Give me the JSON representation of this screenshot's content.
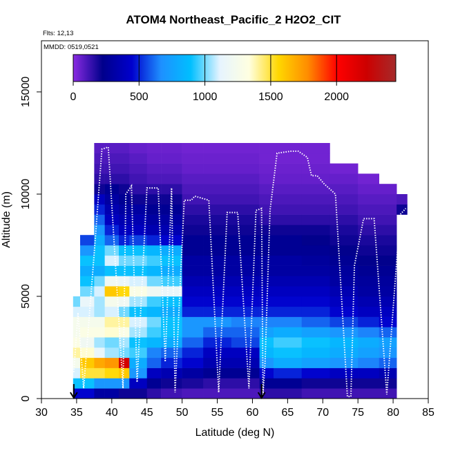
{
  "chart_data": {
    "type": "heatmap",
    "title": "ATOM4 Northeast_Pacific_2 H2O2_CIT",
    "flights_label": "Flts: 12,13",
    "dates_label": "MMDD: 0519,0521",
    "xlabel": "Latitude (deg N)",
    "ylabel": "Altitude (m)",
    "xlim": [
      30,
      85
    ],
    "ylim": [
      0,
      17500
    ],
    "x_ticks": [
      30,
      35,
      40,
      45,
      50,
      55,
      60,
      65,
      70,
      75,
      80,
      85
    ],
    "y_ticks": [
      0,
      5000,
      10000,
      15000
    ],
    "colorbar": {
      "min": 0,
      "max": 2450,
      "ticks": [
        0,
        500,
        1000,
        1500,
        2000
      ],
      "stops": [
        "#8a2be2",
        "#00008b",
        "#0000cd",
        "#1e90ff",
        "#00bfff",
        "#e6f4ff",
        "#ffffe0",
        "#ffd700",
        "#ff8c00",
        "#ff0000",
        "#cd0000",
        "#a52a2a"
      ]
    },
    "altitude_bins_m": [
      0,
      500,
      1000,
      1500,
      2000,
      2500,
      3000,
      3500,
      4000,
      4500,
      5000,
      5500,
      6000,
      6500,
      7000,
      7500,
      8000,
      8500,
      9000,
      9500,
      10000,
      10500,
      11000,
      11500,
      12000
    ],
    "columns": [
      {
        "lat": [
          34.5,
          35.5
        ],
        "values": [
          450,
          900,
          1100,
          1250,
          1400,
          1300,
          1250,
          1250,
          1100,
          1000
        ]
      },
      {
        "lat": [
          35.5,
          37.5
        ],
        "values": [
          450,
          900,
          1500,
          1600,
          1350,
          1200,
          1300,
          1250,
          1100,
          1150,
          1000,
          900,
          800,
          900,
          700,
          550
        ]
      },
      {
        "lat": [
          37.5,
          39
        ],
        "values": [
          300,
          700,
          1500,
          1700,
          1150,
          1050,
          1300,
          1250,
          1050,
          1050,
          1100,
          1000,
          800,
          900,
          900,
          800,
          700,
          600,
          500,
          400,
          200,
          150,
          120,
          100,
          80
        ]
      },
      {
        "lat": [
          39,
          41
        ],
        "values": [
          300,
          700,
          1550,
          1750,
          1050,
          1000,
          1350,
          1400,
          1100,
          1250,
          1600,
          1200,
          900,
          1100,
          1000,
          600,
          500,
          400,
          350,
          300,
          250,
          150,
          120,
          100,
          80
        ]
      },
      {
        "lat": [
          41,
          42.5
        ],
        "values": [
          200,
          700,
          1600,
          2200,
          1000,
          1050,
          1300,
          1400,
          1000,
          1200,
          1550,
          1150,
          900,
          1000,
          900,
          500,
          400,
          350,
          300,
          250,
          200,
          150,
          120,
          100,
          80
        ]
      },
      {
        "lat": [
          42.5,
          45
        ],
        "values": [
          200,
          400,
          700,
          800,
          950,
          900,
          1050,
          1100,
          900,
          1050,
          1300,
          1100,
          900,
          1000,
          900,
          550,
          400,
          350,
          300,
          200,
          150,
          120,
          100,
          80,
          60
        ]
      },
      {
        "lat": [
          45,
          47
        ],
        "values": [
          150,
          250,
          400,
          600,
          650,
          850,
          950,
          1000,
          850,
          950,
          1200,
          1000,
          850,
          950,
          850,
          500,
          350,
          300,
          250,
          200,
          150,
          100,
          80,
          60,
          50
        ]
      },
      {
        "lat": [
          47,
          50
        ],
        "values": [
          120,
          200,
          350,
          500,
          600,
          800,
          900,
          900,
          800,
          900,
          1150,
          950,
          800,
          900,
          800,
          450,
          350,
          300,
          250,
          200,
          150,
          100,
          80,
          60,
          50
        ]
      },
      {
        "lat": [
          50,
          53
        ],
        "values": [
          100,
          180,
          300,
          450,
          500,
          600,
          700,
          700,
          500,
          450,
          400,
          350,
          300,
          300,
          250,
          250,
          200,
          180,
          150,
          120,
          100,
          80,
          60,
          50,
          40
        ]
      },
      {
        "lat": [
          53,
          57
        ],
        "values": [
          100,
          150,
          250,
          350,
          400,
          500,
          600,
          700,
          500,
          450,
          400,
          350,
          300,
          300,
          250,
          250,
          200,
          180,
          150,
          120,
          100,
          80,
          60,
          50,
          40
        ]
      },
      {
        "lat": [
          57,
          61
        ],
        "values": [
          100,
          150,
          250,
          350,
          400,
          550,
          600,
          650,
          500,
          450,
          400,
          350,
          300,
          300,
          250,
          250,
          200,
          180,
          150,
          120,
          100,
          80,
          60,
          50,
          40
        ]
      },
      {
        "lat": [
          61,
          63
        ],
        "values": [
          150,
          250,
          450,
          700,
          850,
          900,
          750,
          650,
          500,
          450,
          400,
          350,
          300,
          300,
          250,
          250,
          200,
          150,
          120,
          100,
          80,
          60,
          50,
          40,
          40
        ]
      },
      {
        "lat": [
          63,
          67
        ],
        "values": [
          150,
          250,
          500,
          800,
          900,
          950,
          800,
          650,
          500,
          450,
          400,
          350,
          300,
          300,
          250,
          250,
          200,
          150,
          120,
          100,
          80,
          60,
          50,
          40,
          40
        ]
      },
      {
        "lat": [
          67,
          71
        ],
        "values": [
          120,
          200,
          450,
          750,
          850,
          900,
          750,
          600,
          500,
          450,
          400,
          350,
          300,
          280,
          250,
          220,
          200,
          150,
          120,
          100,
          80,
          60,
          50,
          40,
          40
        ]
      },
      {
        "lat": [
          71,
          75
        ],
        "values": [
          120,
          200,
          400,
          700,
          800,
          850,
          700,
          550,
          450,
          400,
          350,
          300,
          280,
          250,
          220,
          200,
          180,
          150,
          120,
          100,
          80,
          60,
          40
        ]
      },
      {
        "lat": [
          75,
          78
        ],
        "values": [
          120,
          200,
          400,
          650,
          750,
          800,
          650,
          500,
          400,
          350,
          300,
          280,
          250,
          220,
          200,
          180,
          150,
          120,
          100,
          80,
          60,
          40
        ]
      },
      {
        "lat": [
          78,
          80.5
        ],
        "values": [
          120,
          200,
          350,
          600,
          700,
          750,
          600,
          450,
          400,
          350,
          300,
          280,
          250,
          220,
          200,
          180,
          150,
          120,
          100,
          80,
          60
        ]
      },
      {
        "lat": [
          80.5,
          82
        ],
        "values": [
          null,
          null,
          null,
          null,
          null,
          null,
          null,
          null,
          null,
          null,
          null,
          null,
          null,
          null,
          null,
          null,
          null,
          null,
          200,
          100
        ]
      }
    ],
    "flight_track": [
      [
        34.6,
        1300
      ],
      [
        35.2,
        4200
      ],
      [
        36.0,
        500
      ],
      [
        37.5,
        7100
      ],
      [
        38.6,
        12200
      ],
      [
        39.5,
        12300
      ],
      [
        41.6,
        500
      ],
      [
        42.0,
        10000
      ],
      [
        42.8,
        10400
      ],
      [
        43.6,
        800
      ],
      [
        45.0,
        10300
      ],
      [
        46.6,
        10300
      ],
      [
        47.6,
        1800
      ],
      [
        48.5,
        10300
      ],
      [
        49.0,
        300
      ],
      [
        50.3,
        9700
      ],
      [
        51.3,
        9700
      ],
      [
        51.8,
        9900
      ],
      [
        53.8,
        9700
      ],
      [
        55.2,
        300
      ],
      [
        56.4,
        9100
      ],
      [
        57.9,
        9100
      ],
      [
        59.5,
        500
      ],
      [
        60.5,
        9200
      ],
      [
        61.3,
        9300
      ],
      [
        61.5,
        200
      ],
      [
        61.8,
        1800
      ],
      [
        62.5,
        9200
      ],
      [
        63.5,
        12000
      ],
      [
        65.5,
        12100
      ],
      [
        66.5,
        12100
      ],
      [
        67.8,
        11800
      ],
      [
        68.4,
        10900
      ],
      [
        69.2,
        10900
      ],
      [
        70.2,
        10500
      ],
      [
        71.8,
        10000
      ],
      [
        73.5,
        100
      ],
      [
        74.0,
        100
      ],
      [
        74.5,
        6500
      ],
      [
        75.8,
        8800
      ],
      [
        77.3,
        8800
      ],
      [
        79.1,
        200
      ],
      [
        81.0,
        9000
      ],
      [
        81.8,
        9300
      ]
    ],
    "arrows_lat": [
      34.6,
      61.3
    ]
  }
}
